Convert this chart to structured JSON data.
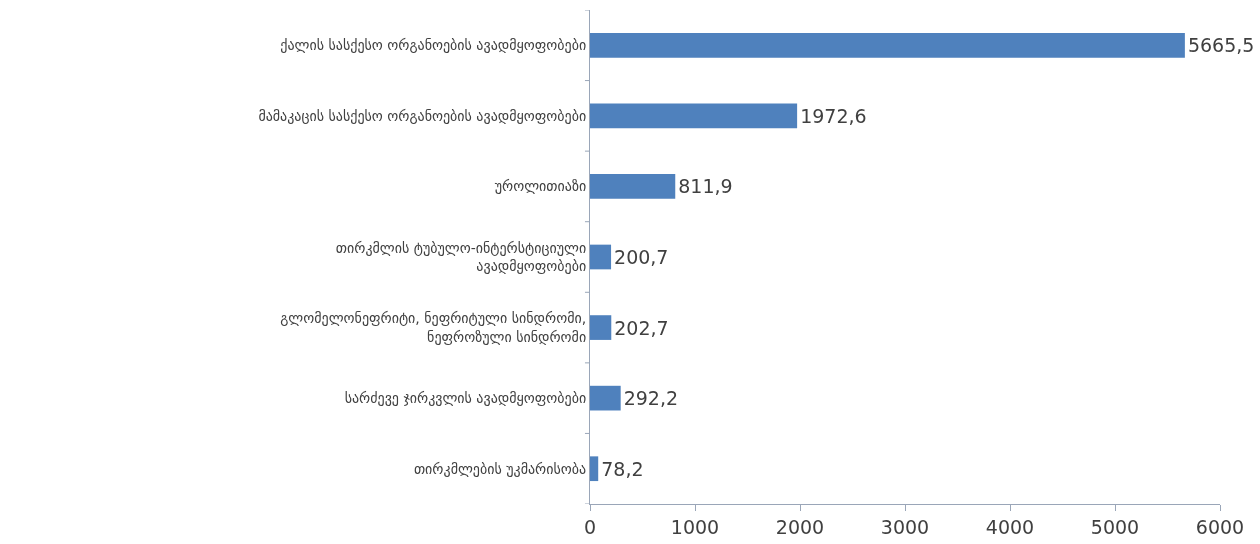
{
  "chart_data": {
    "type": "bar",
    "orientation": "horizontal",
    "categories": [
      "ქალის სასქესო ორგანოების ავადმყოფობები",
      "მამაკაცის სასქესო ორგანოების ავადმყოფობები",
      "უროლითიაზი",
      "თირკმლის ტუბულო-ინტერსტიციული\nავადმყოფობები",
      "გლომელონეფრიტი, ნეფრიტული სინდრომი,\nნეფროზული სინდრომი",
      "სარძევე ჯირკვლის ავადმყოფობები",
      "თირკმლების უკმარისობა"
    ],
    "values": [
      5665.5,
      1972.6,
      811.9,
      200.7,
      202.7,
      292.2,
      78.2
    ],
    "value_labels": [
      "5665,5",
      "1972,6",
      "811,9",
      "200,7",
      "202,7",
      "292,2",
      "78,2"
    ],
    "color": "#4f81bd",
    "xlim": [
      0,
      6000
    ],
    "xticks": [
      0,
      1000,
      2000,
      3000,
      4000,
      5000,
      6000
    ],
    "grid": false,
    "legend": false
  }
}
